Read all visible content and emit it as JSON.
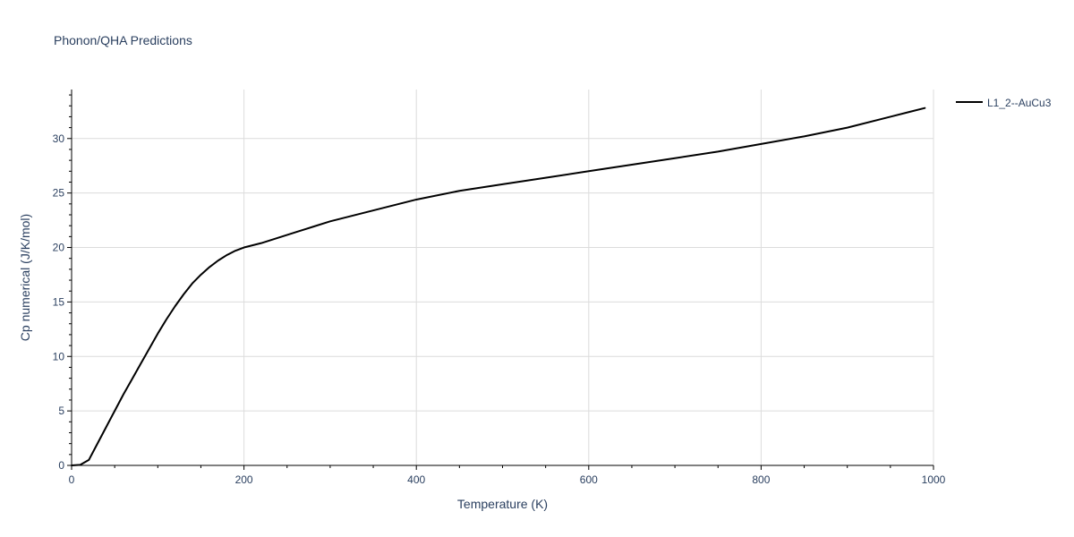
{
  "chart_data": {
    "type": "line",
    "title": "Phonon/QHA Predictions",
    "xlabel": "Temperature (K)",
    "ylabel": "Cp numerical (J/K/mol)",
    "xlim": [
      0,
      1000
    ],
    "ylim": [
      0,
      34.5
    ],
    "xticks": [
      0,
      200,
      400,
      600,
      800,
      1000
    ],
    "yticks": [
      0,
      5,
      10,
      15,
      20,
      25,
      30
    ],
    "grid": true,
    "legend_position": "top-right",
    "series": [
      {
        "name": "L1_2--AuCu3",
        "color": "#000000",
        "x": [
          0,
          10,
          20,
          30,
          40,
          50,
          60,
          70,
          80,
          90,
          100,
          110,
          120,
          130,
          140,
          150,
          160,
          170,
          180,
          190,
          200,
          220,
          240,
          260,
          280,
          300,
          320,
          340,
          360,
          380,
          400,
          450,
          500,
          550,
          600,
          650,
          700,
          750,
          800,
          850,
          900,
          950,
          990
        ],
        "y": [
          0,
          0.05,
          0.5,
          2.0,
          3.5,
          5.0,
          6.5,
          7.9,
          9.3,
          10.7,
          12.1,
          13.4,
          14.6,
          15.7,
          16.7,
          17.5,
          18.2,
          18.8,
          19.3,
          19.7,
          20.0,
          20.4,
          20.9,
          21.4,
          21.9,
          22.4,
          22.8,
          23.2,
          23.6,
          24.0,
          24.4,
          25.2,
          25.8,
          26.4,
          27.0,
          27.6,
          28.2,
          28.8,
          29.5,
          30.2,
          31.0,
          32.0,
          32.8
        ]
      }
    ]
  }
}
